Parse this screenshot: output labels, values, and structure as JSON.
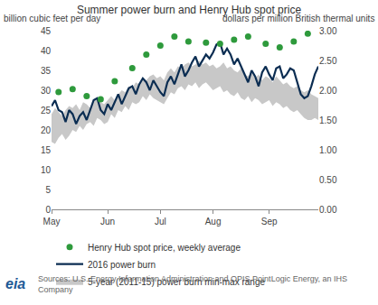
{
  "chart_data": {
    "type": "line",
    "title": "Summer power burn and Henry Hub spot price",
    "ylabel": "billion cubic feet per day",
    "y2label": "dollars per million British thermal units",
    "source": [
      "Sources: U.S. Energy Information Administration and OPIS PointLogic Energy, an IHS",
      "Company"
    ],
    "logo": "eia",
    "categories": [
      "May",
      null,
      null,
      null,
      null,
      null,
      null,
      null,
      null,
      null,
      null,
      null,
      null,
      null,
      null,
      null,
      "Jun",
      null,
      null,
      null,
      null,
      null,
      null,
      null,
      null,
      null,
      null,
      null,
      null,
      null,
      null,
      "Jul",
      null,
      null,
      null,
      null,
      null,
      null,
      null,
      null,
      null,
      null,
      null,
      null,
      null,
      null,
      "Aug",
      null,
      null,
      null,
      null,
      null,
      null,
      null,
      null,
      null,
      null,
      null,
      null,
      null,
      null,
      null,
      "Sep",
      null,
      null,
      null,
      null,
      null,
      null,
      null,
      null,
      null,
      null,
      null,
      null,
      null,
      null
    ],
    "series": [
      {
        "name": "5-year (2011-15) power burn min-max range",
        "type": "range",
        "color": "#c8c8c8",
        "low": [
          17,
          16.5,
          18,
          19,
          17.5,
          18.5,
          20,
          19.5,
          21,
          20,
          21.5,
          22,
          21,
          23,
          22.5,
          21.5,
          22,
          24,
          23,
          25,
          24.5,
          26,
          25,
          27,
          26.5,
          27,
          28.5,
          27.5,
          29,
          28,
          27.5,
          27,
          26.5,
          28,
          29.5,
          29,
          30.5,
          31,
          30,
          31.5,
          31,
          32,
          30.5,
          31.5,
          32,
          31,
          30,
          30.5,
          31,
          29.5,
          30,
          29,
          28.5,
          29.5,
          28,
          27.5,
          28.5,
          27,
          28,
          27.5,
          26.5,
          27,
          27.5,
          26,
          27,
          26.5,
          25.5,
          26,
          25,
          24.5,
          25,
          24,
          23,
          22.5,
          22.5,
          23,
          22.5
        ],
        "high": [
          24,
          25.5,
          24.5,
          23.5,
          25,
          26,
          25.5,
          26.5,
          25,
          27,
          26.5,
          25.5,
          27.5,
          28,
          27,
          26.5,
          27.5,
          28.5,
          27.5,
          29,
          30,
          29.5,
          31,
          30.5,
          32,
          31.5,
          33,
          32.5,
          33.5,
          34,
          33,
          33.5,
          32.5,
          34.5,
          35.5,
          34.5,
          36,
          35.5,
          36.5,
          37,
          36,
          36.5,
          37.5,
          36.5,
          37,
          36,
          36.5,
          35.5,
          36,
          37,
          35.5,
          36,
          35,
          34.5,
          35.5,
          34,
          33.5,
          34.5,
          33,
          34,
          32.5,
          33.5,
          33,
          32,
          33.5,
          32.5,
          31.5,
          32,
          31,
          30.5,
          31,
          30,
          29.5,
          30,
          29,
          28.5,
          28
        ]
      },
      {
        "name": "2016 power burn",
        "type": "line",
        "color": "#0b2d52",
        "line_style": "solid",
        "values": [
          26,
          27.5,
          25,
          24.5,
          22,
          25,
          24,
          21.5,
          23.5,
          24.5,
          22.5,
          25,
          27.5,
          28,
          25,
          24,
          26.5,
          25,
          27,
          29,
          26.5,
          28.5,
          30.5,
          31,
          29,
          31.5,
          33,
          32,
          30,
          32.5,
          31,
          29.5,
          28.5,
          32,
          33.5,
          31.5,
          34,
          36.5,
          33.5,
          35,
          37,
          38.5,
          36,
          37.5,
          39,
          38,
          39.5,
          41.5,
          42,
          39,
          40.5,
          39,
          36.5,
          38,
          36,
          34,
          32,
          35,
          33.5,
          31,
          34.5,
          36,
          34,
          32.5,
          35.5,
          36,
          33,
          34,
          35.5,
          35,
          32,
          29,
          28,
          28.5,
          31,
          34,
          36
        ]
      },
      {
        "name": "Henry Hub spot price, weekly average",
        "type": "scatter",
        "marker": "circle",
        "color": "#2e9a3c",
        "axis": "y2",
        "values": [
          null,
          null,
          1.97,
          null,
          null,
          null,
          2.02,
          null,
          null,
          null,
          1.9,
          null,
          null,
          null,
          1.85,
          null,
          null,
          null,
          2.15,
          null,
          null,
          null,
          null,
          2.37,
          null,
          null,
          null,
          2.6,
          null,
          null,
          null,
          2.75,
          null,
          null,
          null,
          2.9,
          null,
          null,
          null,
          2.82,
          null,
          null,
          null,
          null,
          2.8,
          null,
          null,
          null,
          2.78,
          null,
          null,
          null,
          2.85,
          null,
          null,
          null,
          2.9,
          null,
          null,
          null,
          null,
          2.78,
          null,
          null,
          null,
          2.72,
          null,
          null,
          null,
          2.82,
          null,
          null,
          null,
          2.95,
          null,
          null,
          null
        ]
      }
    ],
    "ylim": [
      0,
      45
    ],
    "yticks": [
      0,
      5,
      10,
      15,
      20,
      25,
      30,
      35,
      40,
      45
    ],
    "y2lim": [
      0,
      3
    ],
    "y2ticks": [
      {
        "value": 0,
        "label": "0.00"
      },
      {
        "value": 0.5,
        "label": "0.50"
      },
      {
        "value": 1,
        "label": "1.00"
      },
      {
        "value": 1.5,
        "label": "1.50"
      },
      {
        "value": 2,
        "label": "2.00"
      },
      {
        "value": 2.5,
        "label": "2.50"
      },
      {
        "value": 3,
        "label": "3.00"
      }
    ],
    "grid": false,
    "legend": "bottom"
  }
}
